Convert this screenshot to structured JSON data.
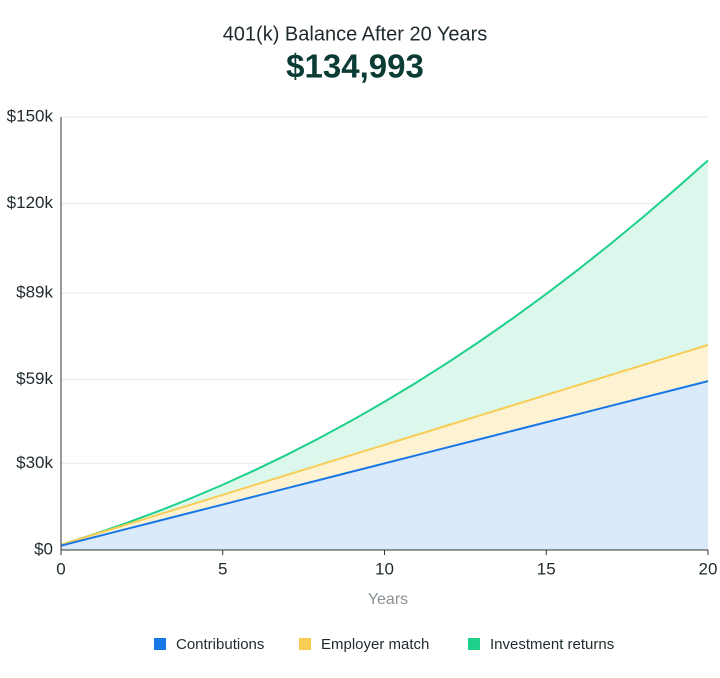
{
  "chart_data": {
    "type": "stacked-area",
    "title": "401(k) Balance After 20 Years",
    "headline": "$134,993",
    "x_label": "Years",
    "x": [
      0,
      1,
      2,
      3,
      4,
      5,
      6,
      7,
      8,
      9,
      10,
      11,
      12,
      13,
      14,
      15,
      16,
      17,
      18,
      19,
      20
    ],
    "series": [
      {
        "name": "Contributions",
        "color": "#1877e6",
        "fill": "#dbeafb",
        "values": [
          1500,
          4350,
          7200,
          10050,
          12900,
          15750,
          18600,
          21450,
          24300,
          27150,
          30000,
          32850,
          35700,
          38550,
          41400,
          44250,
          47100,
          49950,
          52800,
          55650,
          58500
        ]
      },
      {
        "name": "Employer match",
        "color": "#f8cd55",
        "fill": "#fdf3d3",
        "values": [
          320,
          930,
          1540,
          2150,
          2760,
          3370,
          3980,
          4590,
          5200,
          5810,
          6420,
          7030,
          7640,
          8250,
          8860,
          9470,
          10080,
          10690,
          11300,
          11910,
          12520
        ]
      },
      {
        "name": "Investment returns",
        "color": "#1dd18a",
        "fill": "#dcf7ec",
        "values": [
          0,
          119,
          508,
          1191,
          2180,
          3483,
          5107,
          7060,
          9345,
          11967,
          14931,
          18240,
          21896,
          25902,
          30266,
          34985,
          40063,
          45504,
          51310,
          57478,
          63973
        ]
      }
    ],
    "xlim": [
      0,
      20
    ],
    "xticks": [
      0,
      5,
      10,
      15,
      20
    ],
    "ylim": [
      0,
      150000
    ],
    "yticks": [
      {
        "value": 0,
        "label": "$0"
      },
      {
        "value": 30000,
        "label": "$30k"
      },
      {
        "value": 59000,
        "label": "$59k"
      },
      {
        "value": 89000,
        "label": "$89k"
      },
      {
        "value": 120000,
        "label": "$120k"
      },
      {
        "value": 150000,
        "label": "$150k"
      }
    ],
    "grid": true,
    "legend": "bottom"
  }
}
